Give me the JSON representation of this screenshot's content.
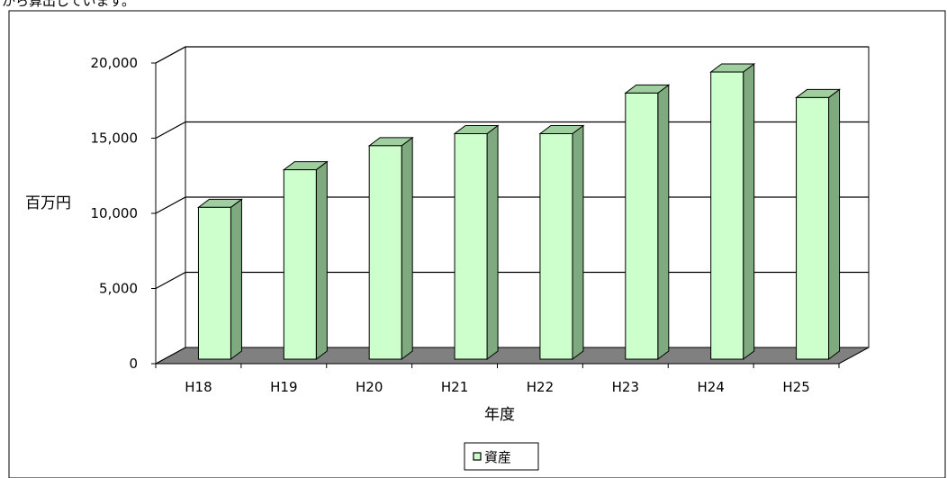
{
  "header_fragment": "から算出しています。",
  "chart_data": {
    "type": "bar",
    "categories": [
      "H18",
      "H19",
      "H20",
      "H21",
      "H22",
      "H23",
      "H24",
      "H25"
    ],
    "series": [
      {
        "name": "資産",
        "values": [
          10100,
          12600,
          14200,
          15000,
          15000,
          17700,
          19100,
          17400
        ]
      }
    ],
    "xlabel": "年度",
    "ylabel": "百万円",
    "ylim": [
      0,
      20000
    ],
    "yticks": [
      "0",
      "5,000",
      "10,000",
      "15,000",
      "20,000"
    ],
    "grid": true,
    "legend_position": "bottom",
    "colors": {
      "bar_front": "#ccffcc",
      "bar_side": "#7faa7f",
      "floor": "#808080",
      "wall": "#ffffff"
    }
  }
}
